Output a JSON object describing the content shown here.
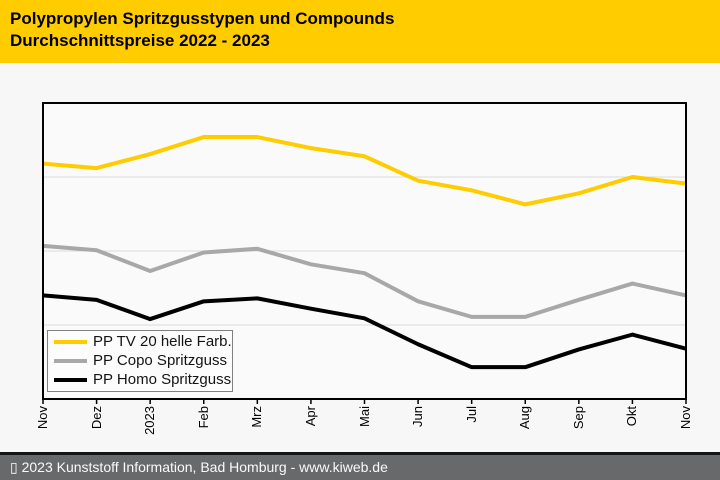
{
  "header": {
    "title_line1": "Polypropylen Spritzgusstypen und Compounds",
    "title_line2": "Durchschnittspreise 2022 - 2023"
  },
  "footer": {
    "text": "▯ 2023 Kunststoff Information, Bad Homburg - www.kiweb.de"
  },
  "colors": {
    "header_bg": "#FFCC00",
    "page_bg": "#F7F7F7",
    "plot_bg": "#FAFAFA",
    "plot_border": "#000000",
    "gridline": "#D9D9D9",
    "tick": "#000000",
    "footer_bar": "#67696B",
    "footer_text": "#FAFAFA",
    "legend_border": "#808080",
    "legend_bg": "#FCFCFC"
  },
  "chart_data": {
    "type": "line",
    "title": "Polypropylen Spritzgusstypen und Compounds Durchschnittspreise 2022 - 2023",
    "categories": [
      "Nov",
      "Dez",
      "2023",
      "Feb",
      "Mrz",
      "Apr",
      "Mai",
      "Jun",
      "Jul",
      "Aug",
      "Sep",
      "Okt",
      "Nov"
    ],
    "series": [
      {
        "name": "PP TV 20 helle Farb.",
        "color": "#FFCC00",
        "values": [
          3.18,
          3.12,
          3.31,
          3.54,
          3.54,
          3.39,
          3.28,
          2.95,
          2.82,
          2.63,
          2.78,
          3.0,
          2.91
        ]
      },
      {
        "name": "PP Copo Spritzguss",
        "color": "#A8A8A8",
        "values": [
          2.07,
          2.01,
          1.73,
          1.98,
          2.03,
          1.82,
          1.7,
          1.32,
          1.11,
          1.11,
          1.34,
          1.56,
          1.4
        ]
      },
      {
        "name": "PP Homo Spritzguss",
        "color": "#000000",
        "values": [
          1.4,
          1.34,
          1.08,
          1.32,
          1.36,
          1.22,
          1.09,
          0.74,
          0.43,
          0.43,
          0.67,
          0.87,
          0.68
        ]
      }
    ],
    "xlabel": "",
    "ylabel": "",
    "ylim": [
      0,
      4
    ],
    "gridlines": [
      1,
      2,
      3
    ],
    "grid": "horizontal",
    "legend_position": "inside-bottom-left",
    "y_axis_note": "No y-axis tick labels are visible in the chart; series values are expressed in relative gridline units (one unit per horizontal gridline gap)."
  }
}
